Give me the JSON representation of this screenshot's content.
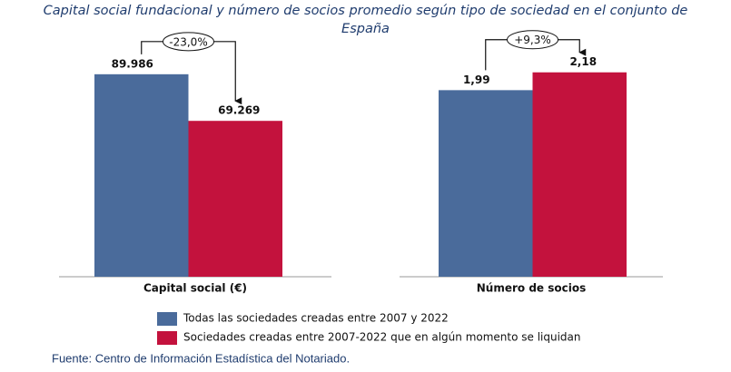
{
  "title": "Capital social fundacional y número de socios promedio según tipo de sociedad en el conjunto de España",
  "source": "Fuente: Centro de Información Estadística del Notariado.",
  "chart_data": [
    {
      "type": "bar",
      "categories": [
        "Capital social  (€)"
      ],
      "ylim": [
        0,
        100000
      ],
      "annotation": "-23,0%",
      "series": [
        {
          "name": "Todas las sociedades  creadas entre 2007 y 2022",
          "color": "#4a6b9b",
          "values": [
            89986
          ],
          "value_labels": [
            "89.986"
          ]
        },
        {
          "name": "Sociedades  creadas entre 2007-2022 que en algún momento se liquidan",
          "color": "#c3123d",
          "values": [
            69269
          ],
          "value_labels": [
            "69.269"
          ]
        }
      ]
    },
    {
      "type": "bar",
      "categories": [
        "Número de socios"
      ],
      "ylim": [
        0,
        2.4
      ],
      "annotation": "+9,3%",
      "series": [
        {
          "color": "#4a6b9b",
          "values": [
            1.99
          ],
          "value_labels": [
            "1,99"
          ]
        },
        {
          "color": "#c3123d",
          "values": [
            2.18
          ],
          "value_labels": [
            "2,18"
          ]
        }
      ]
    }
  ]
}
